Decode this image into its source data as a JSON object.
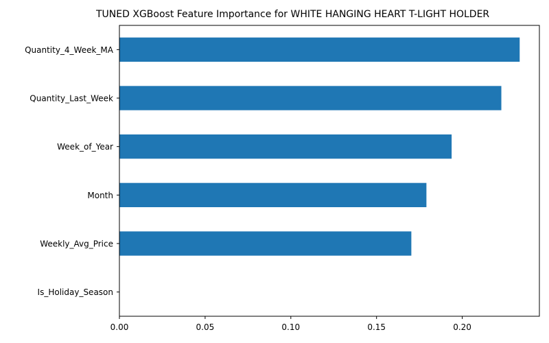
{
  "chart_data": {
    "type": "bar",
    "orientation": "horizontal",
    "title": "TUNED XGBoost Feature Importance for WHITE HANGING HEART T-LIGHT HOLDER",
    "xlabel": "",
    "ylabel": "",
    "categories": [
      "Quantity_4_Week_MA",
      "Quantity_Last_Week",
      "Week_of_Year",
      "Month",
      "Weekly_Avg_Price",
      "Is_Holiday_Season"
    ],
    "values": [
      0.2335,
      0.2228,
      0.1938,
      0.1791,
      0.1703,
      0.0
    ],
    "xlim": [
      0,
      0.245
    ],
    "xticks": [
      0.0,
      0.05,
      0.1,
      0.15,
      0.2
    ],
    "xtick_labels": [
      "0.00",
      "0.05",
      "0.10",
      "0.15",
      "0.20"
    ],
    "bar_color": "#1f77b4",
    "grid": false,
    "legend": false
  }
}
